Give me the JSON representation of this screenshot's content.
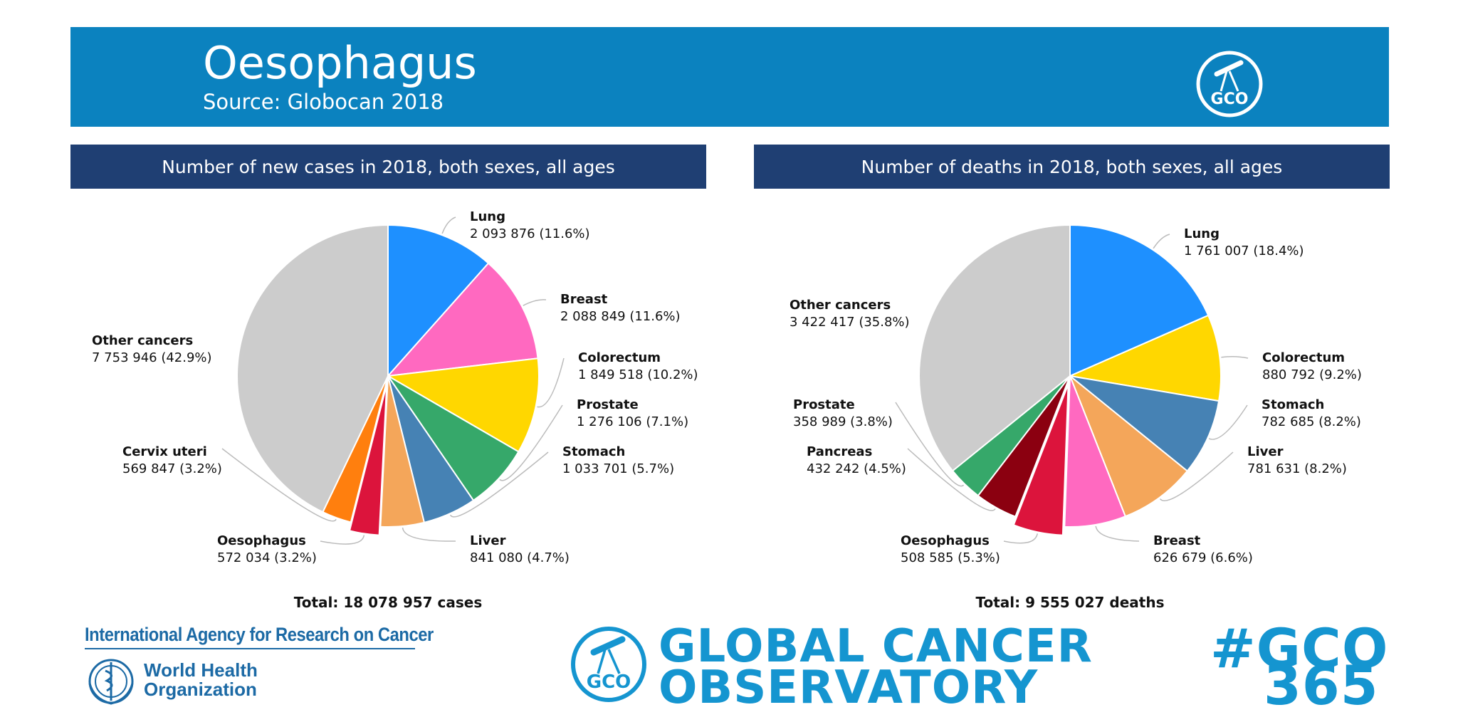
{
  "header": {
    "title": "Oesophagus",
    "subtitle": "Source: Globocan 2018",
    "logo_text": "GCO",
    "colors": {
      "band": "#0b82bf",
      "panel_bar": "#1f3f73"
    }
  },
  "chart_data": [
    {
      "type": "pie",
      "title": "Number of new cases in 2018, both sexes, all ages",
      "total_label": "Total: 18 078 957 cases",
      "slices": [
        {
          "label": "Lung",
          "value_text": "2 093 876 (11.6%)",
          "value": 2093876,
          "percent": 11.6,
          "color": "#1e90ff"
        },
        {
          "label": "Breast",
          "value_text": "2 088 849 (11.6%)",
          "value": 2088849,
          "percent": 11.6,
          "color": "#ff69c0"
        },
        {
          "label": "Colorectum",
          "value_text": "1 849 518 (10.2%)",
          "value": 1849518,
          "percent": 10.2,
          "color": "#ffd700"
        },
        {
          "label": "Prostate",
          "value_text": "1 276 106 (7.1%)",
          "value": 1276106,
          "percent": 7.1,
          "color": "#36a86a"
        },
        {
          "label": "Stomach",
          "value_text": "1 033 701 (5.7%)",
          "value": 1033701,
          "percent": 5.7,
          "color": "#4682b4"
        },
        {
          "label": "Liver",
          "value_text": "841 080 (4.7%)",
          "value": 841080,
          "percent": 4.7,
          "color": "#f4a65a"
        },
        {
          "label": "Oesophagus",
          "value_text": "572 034 (3.2%)",
          "value": 572034,
          "percent": 3.2,
          "color": "#dc143c",
          "exploded": true
        },
        {
          "label": "Cervix uteri",
          "value_text": "569 847 (3.2%)",
          "value": 569847,
          "percent": 3.2,
          "color": "#ff7f0e"
        },
        {
          "label": "Other cancers",
          "value_text": "7 753 946 (42.9%)",
          "value": 7753946,
          "percent": 42.9,
          "color": "#cccccc"
        }
      ]
    },
    {
      "type": "pie",
      "title": "Number of deaths in 2018, both sexes, all ages",
      "total_label": "Total: 9 555 027 deaths",
      "slices": [
        {
          "label": "Lung",
          "value_text": "1 761 007 (18.4%)",
          "value": 1761007,
          "percent": 18.4,
          "color": "#1e90ff"
        },
        {
          "label": "Colorectum",
          "value_text": "880 792 (9.2%)",
          "value": 880792,
          "percent": 9.2,
          "color": "#ffd700"
        },
        {
          "label": "Stomach",
          "value_text": "782 685 (8.2%)",
          "value": 782685,
          "percent": 8.2,
          "color": "#4682b4"
        },
        {
          "label": "Liver",
          "value_text": "781 631 (8.2%)",
          "value": 781631,
          "percent": 8.2,
          "color": "#f4a65a"
        },
        {
          "label": "Breast",
          "value_text": "626 679 (6.6%)",
          "value": 626679,
          "percent": 6.6,
          "color": "#ff69c0"
        },
        {
          "label": "Oesophagus",
          "value_text": "508 585 (5.3%)",
          "value": 508585,
          "percent": 5.3,
          "color": "#dc143c",
          "exploded": true
        },
        {
          "label": "Pancreas",
          "value_text": "432 242 (4.5%)",
          "value": 432242,
          "percent": 4.5,
          "color": "#8b0010"
        },
        {
          "label": "Prostate",
          "value_text": "358 989 (3.8%)",
          "value": 358989,
          "percent": 3.8,
          "color": "#36a86a"
        },
        {
          "label": "Other cancers",
          "value_text": "3 422 417 (35.8%)",
          "value": 3422417,
          "percent": 35.8,
          "color": "#cccccc"
        }
      ]
    }
  ],
  "footer": {
    "iarc": "International Agency for Research on Cancer",
    "who_line1": "World Health",
    "who_line2": "Organization",
    "gco_line1": "GLOBAL CANCER",
    "gco_line2": "OBSERVATORY",
    "hashtag_line1": "#GCO",
    "hashtag_line2": "365",
    "brand_color": "#1595d0"
  }
}
